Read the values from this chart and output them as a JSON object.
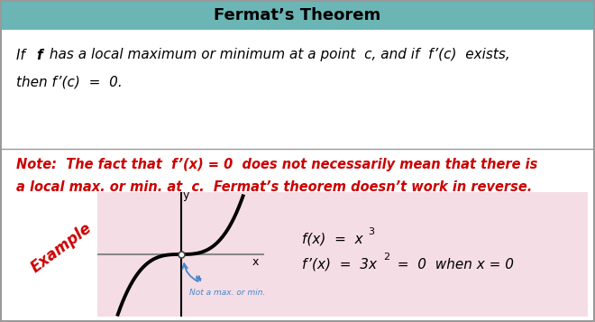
{
  "title": "Fermat’s Theorem",
  "title_bg": "#6bb5b5",
  "title_color": "black",
  "outer_bg": "white",
  "pink_box_bg": "#f5dde5",
  "note_line1": "Note:  The fact that  f’(x) = 0  does not necessarily mean that there is",
  "note_line2": "a local max. or min. at  c.  Fermat’s theorem doesn’t work in reverse.",
  "example_label": "Example",
  "not_a_max": "Not a max. or min.",
  "red": "#cc0000",
  "blue_note": "#4488cc",
  "border_color": "#999999",
  "divider_color": "#999999",
  "fig_width": 6.6,
  "fig_height": 3.57,
  "dpi": 100
}
